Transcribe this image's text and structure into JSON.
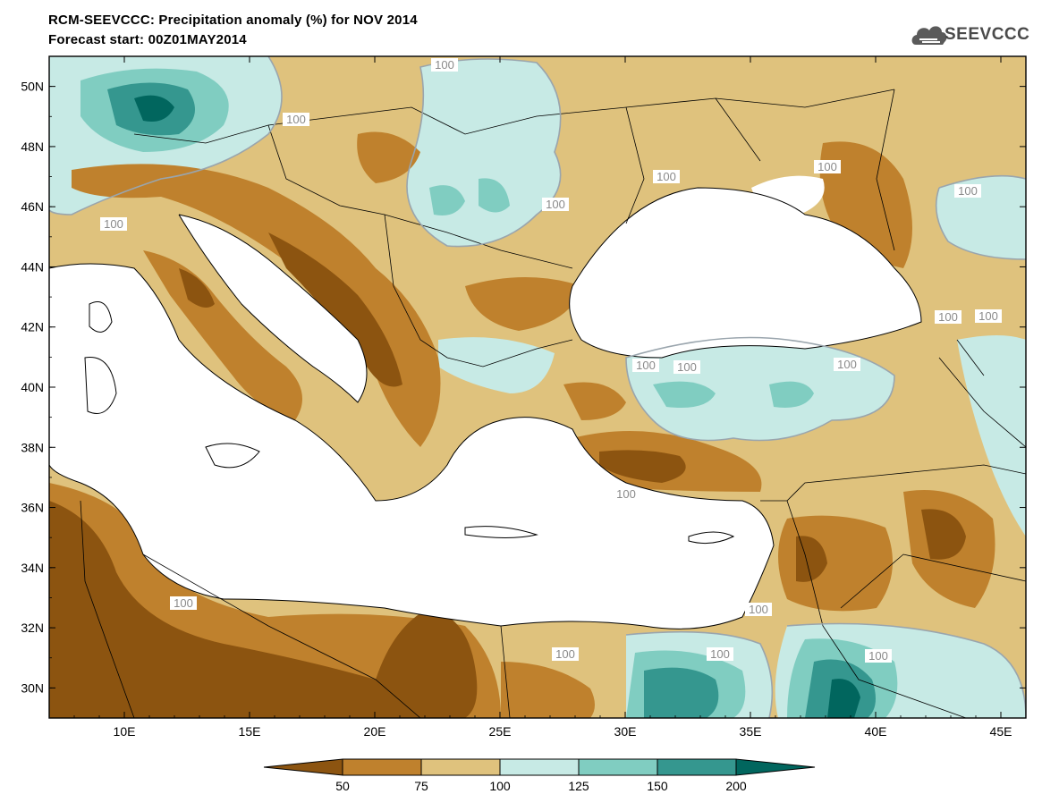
{
  "title": "RCM-SEEVCCC: Precipitation anomaly (%) for NOV 2014",
  "subtitle": "Forecast start: 00Z01MAY2014",
  "logo": {
    "text": "SEEVCCC",
    "icon": "cloud-icon"
  },
  "map": {
    "lon_range": [
      7,
      46
    ],
    "lat_range": [
      29,
      51
    ],
    "x_ticks": [
      "10E",
      "15E",
      "20E",
      "25E",
      "30E",
      "35E",
      "40E",
      "45E"
    ],
    "y_ticks": [
      "50N",
      "48N",
      "46N",
      "44N",
      "42N",
      "40N",
      "38N",
      "36N",
      "34N",
      "32N",
      "30N"
    ],
    "contour_labels": [
      "100",
      "100",
      "100",
      "100",
      "100",
      "100",
      "100",
      "100",
      "100",
      "100",
      "100",
      "100",
      "100",
      "100",
      "100",
      "100",
      "100",
      "100"
    ]
  },
  "legend": {
    "labels": [
      "50",
      "75",
      "100",
      "125",
      "150",
      "200"
    ],
    "colors": {
      "lt50": "#8c5410",
      "50_75": "#bf812d",
      "75_100": "#dfc27d",
      "100_125": "#c7eae5",
      "125_150": "#80cdc1",
      "150_200": "#35978f",
      "gt200": "#01665e"
    }
  }
}
